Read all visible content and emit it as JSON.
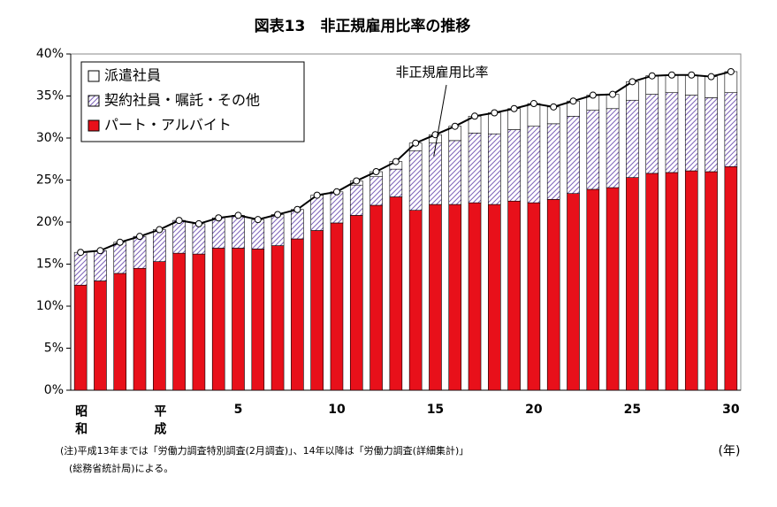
{
  "chart_data": {
    "type": "stacked_bar_line",
    "title": "図表13　非正規雇用比率の推移",
    "categories": [
      "昭和",
      null,
      null,
      null,
      "平成",
      null,
      null,
      null,
      "5",
      null,
      null,
      null,
      null,
      "10",
      null,
      null,
      null,
      null,
      "15",
      null,
      null,
      null,
      null,
      "20",
      null,
      null,
      null,
      null,
      "25",
      null,
      null,
      null,
      null,
      "30"
    ],
    "x_unit_label": "(年)",
    "series": [
      {
        "name": "パート・アルバイト",
        "color": "#e8101a",
        "values": [
          12.5,
          13.0,
          13.9,
          14.5,
          15.3,
          16.3,
          16.2,
          16.9,
          16.9,
          16.8,
          17.2,
          18.0,
          19.0,
          19.9,
          20.8,
          22.0,
          23.0,
          21.4,
          22.1,
          22.1,
          22.3,
          22.1,
          22.5,
          22.3,
          22.7,
          23.4,
          23.9,
          24.1,
          25.3,
          25.8,
          25.9,
          26.1,
          26.0,
          26.6
        ]
      },
      {
        "name": "契約社員・嘱託・その他",
        "color": "#7b5fb8",
        "pattern": "hatch",
        "values": [
          3.9,
          3.6,
          3.7,
          3.8,
          3.8,
          3.9,
          3.6,
          3.6,
          3.9,
          3.5,
          3.7,
          3.5,
          4.2,
          3.7,
          3.6,
          3.4,
          3.3,
          7.1,
          7.3,
          7.6,
          8.3,
          8.4,
          8.5,
          9.1,
          9.0,
          9.2,
          9.4,
          9.4,
          9.2,
          9.4,
          9.5,
          9.0,
          8.8,
          8.8
        ]
      },
      {
        "name": "派遣社員",
        "color": "#ffffff",
        "values": [
          0,
          0,
          0,
          0,
          0,
          0,
          0,
          0,
          0,
          0,
          0,
          0,
          0,
          0,
          0.5,
          0.6,
          0.9,
          0.9,
          1.0,
          1.7,
          2.0,
          2.5,
          2.5,
          2.7,
          2.0,
          1.8,
          1.8,
          1.7,
          2.2,
          2.2,
          2.1,
          2.4,
          2.5,
          2.5
        ]
      },
      {
        "name": "非正規雇用比率",
        "type": "line",
        "color": "#000000",
        "values": [
          16.4,
          16.6,
          17.6,
          18.3,
          19.1,
          20.2,
          19.8,
          20.5,
          20.8,
          20.3,
          20.9,
          21.5,
          23.2,
          23.6,
          24.9,
          26.0,
          27.2,
          29.4,
          30.4,
          31.4,
          32.6,
          33.0,
          33.5,
          34.1,
          33.7,
          34.4,
          35.1,
          35.2,
          36.7,
          37.4,
          37.5,
          37.5,
          37.3,
          37.9
        ]
      }
    ],
    "ylim": [
      0,
      40
    ],
    "yticks": [
      {
        "value": 0,
        "label": "0%"
      },
      {
        "value": 5,
        "label": "5%"
      },
      {
        "value": 10,
        "label": "10%"
      },
      {
        "value": 15,
        "label": "15%"
      },
      {
        "value": 20,
        "label": "20%"
      },
      {
        "value": 25,
        "label": "25%"
      },
      {
        "value": 30,
        "label": "30%"
      },
      {
        "value": 35,
        "label": "35%"
      },
      {
        "value": 40,
        "label": "40%"
      }
    ],
    "legend": "upper left",
    "notes": [
      "(注)平成13年までは「労働力調査特別調査(2月調査)」、14年以降は「労働力調査(詳細集計)」",
      "(総務省統計局)による。"
    ]
  }
}
